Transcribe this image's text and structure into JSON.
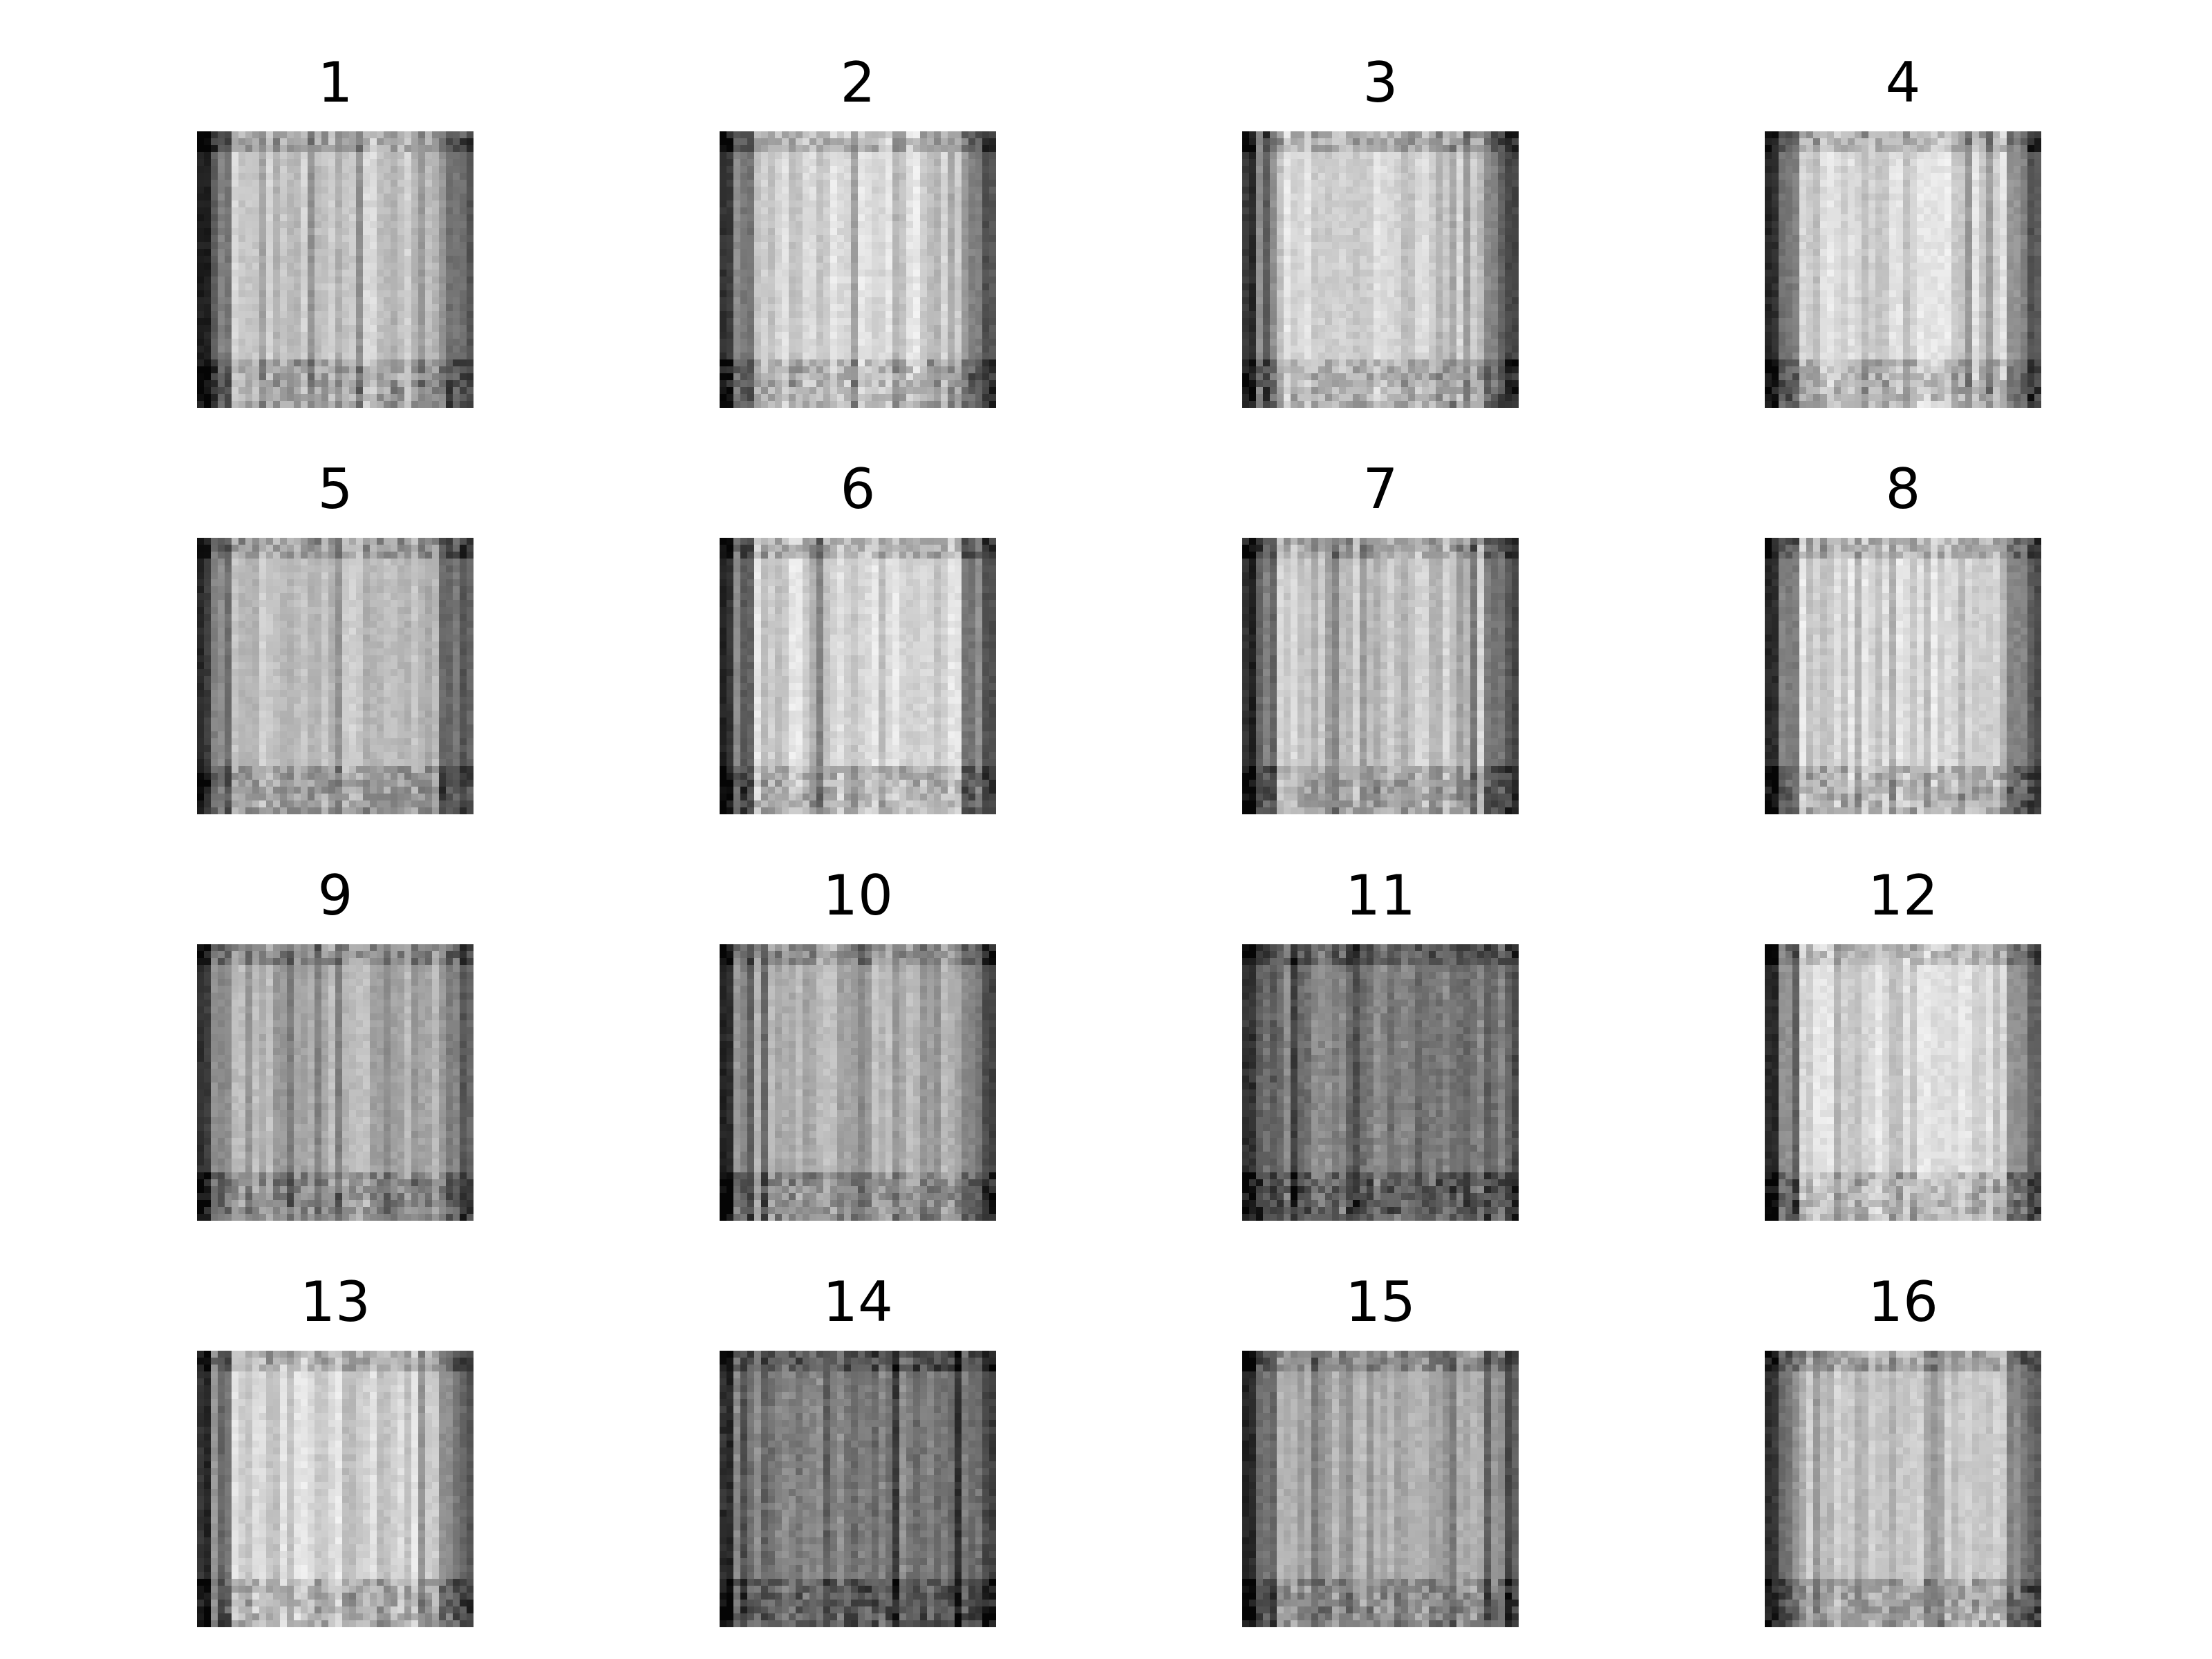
{
  "figure": {
    "panels": [
      {
        "label": "1",
        "variant": "mixed"
      },
      {
        "label": "2",
        "variant": "bright"
      },
      {
        "label": "3",
        "variant": "bright"
      },
      {
        "label": "4",
        "variant": "bright"
      },
      {
        "label": "5",
        "variant": "mixed"
      },
      {
        "label": "6",
        "variant": "bright"
      },
      {
        "label": "7",
        "variant": "mixed"
      },
      {
        "label": "8",
        "variant": "bright"
      },
      {
        "label": "9",
        "variant": "dim"
      },
      {
        "label": "10",
        "variant": "dim"
      },
      {
        "label": "11",
        "variant": "dark"
      },
      {
        "label": "12",
        "variant": "bright"
      },
      {
        "label": "13",
        "variant": "bright"
      },
      {
        "label": "14",
        "variant": "dark"
      },
      {
        "label": "15",
        "variant": "dim"
      },
      {
        "label": "16",
        "variant": "mixed"
      }
    ],
    "colors": {
      "background": "#ffffff",
      "title_text": "#000000",
      "image_dark": "#1a1a1a",
      "image_mid": "#6e6e6e",
      "image_light": "#f7f7f7"
    }
  }
}
